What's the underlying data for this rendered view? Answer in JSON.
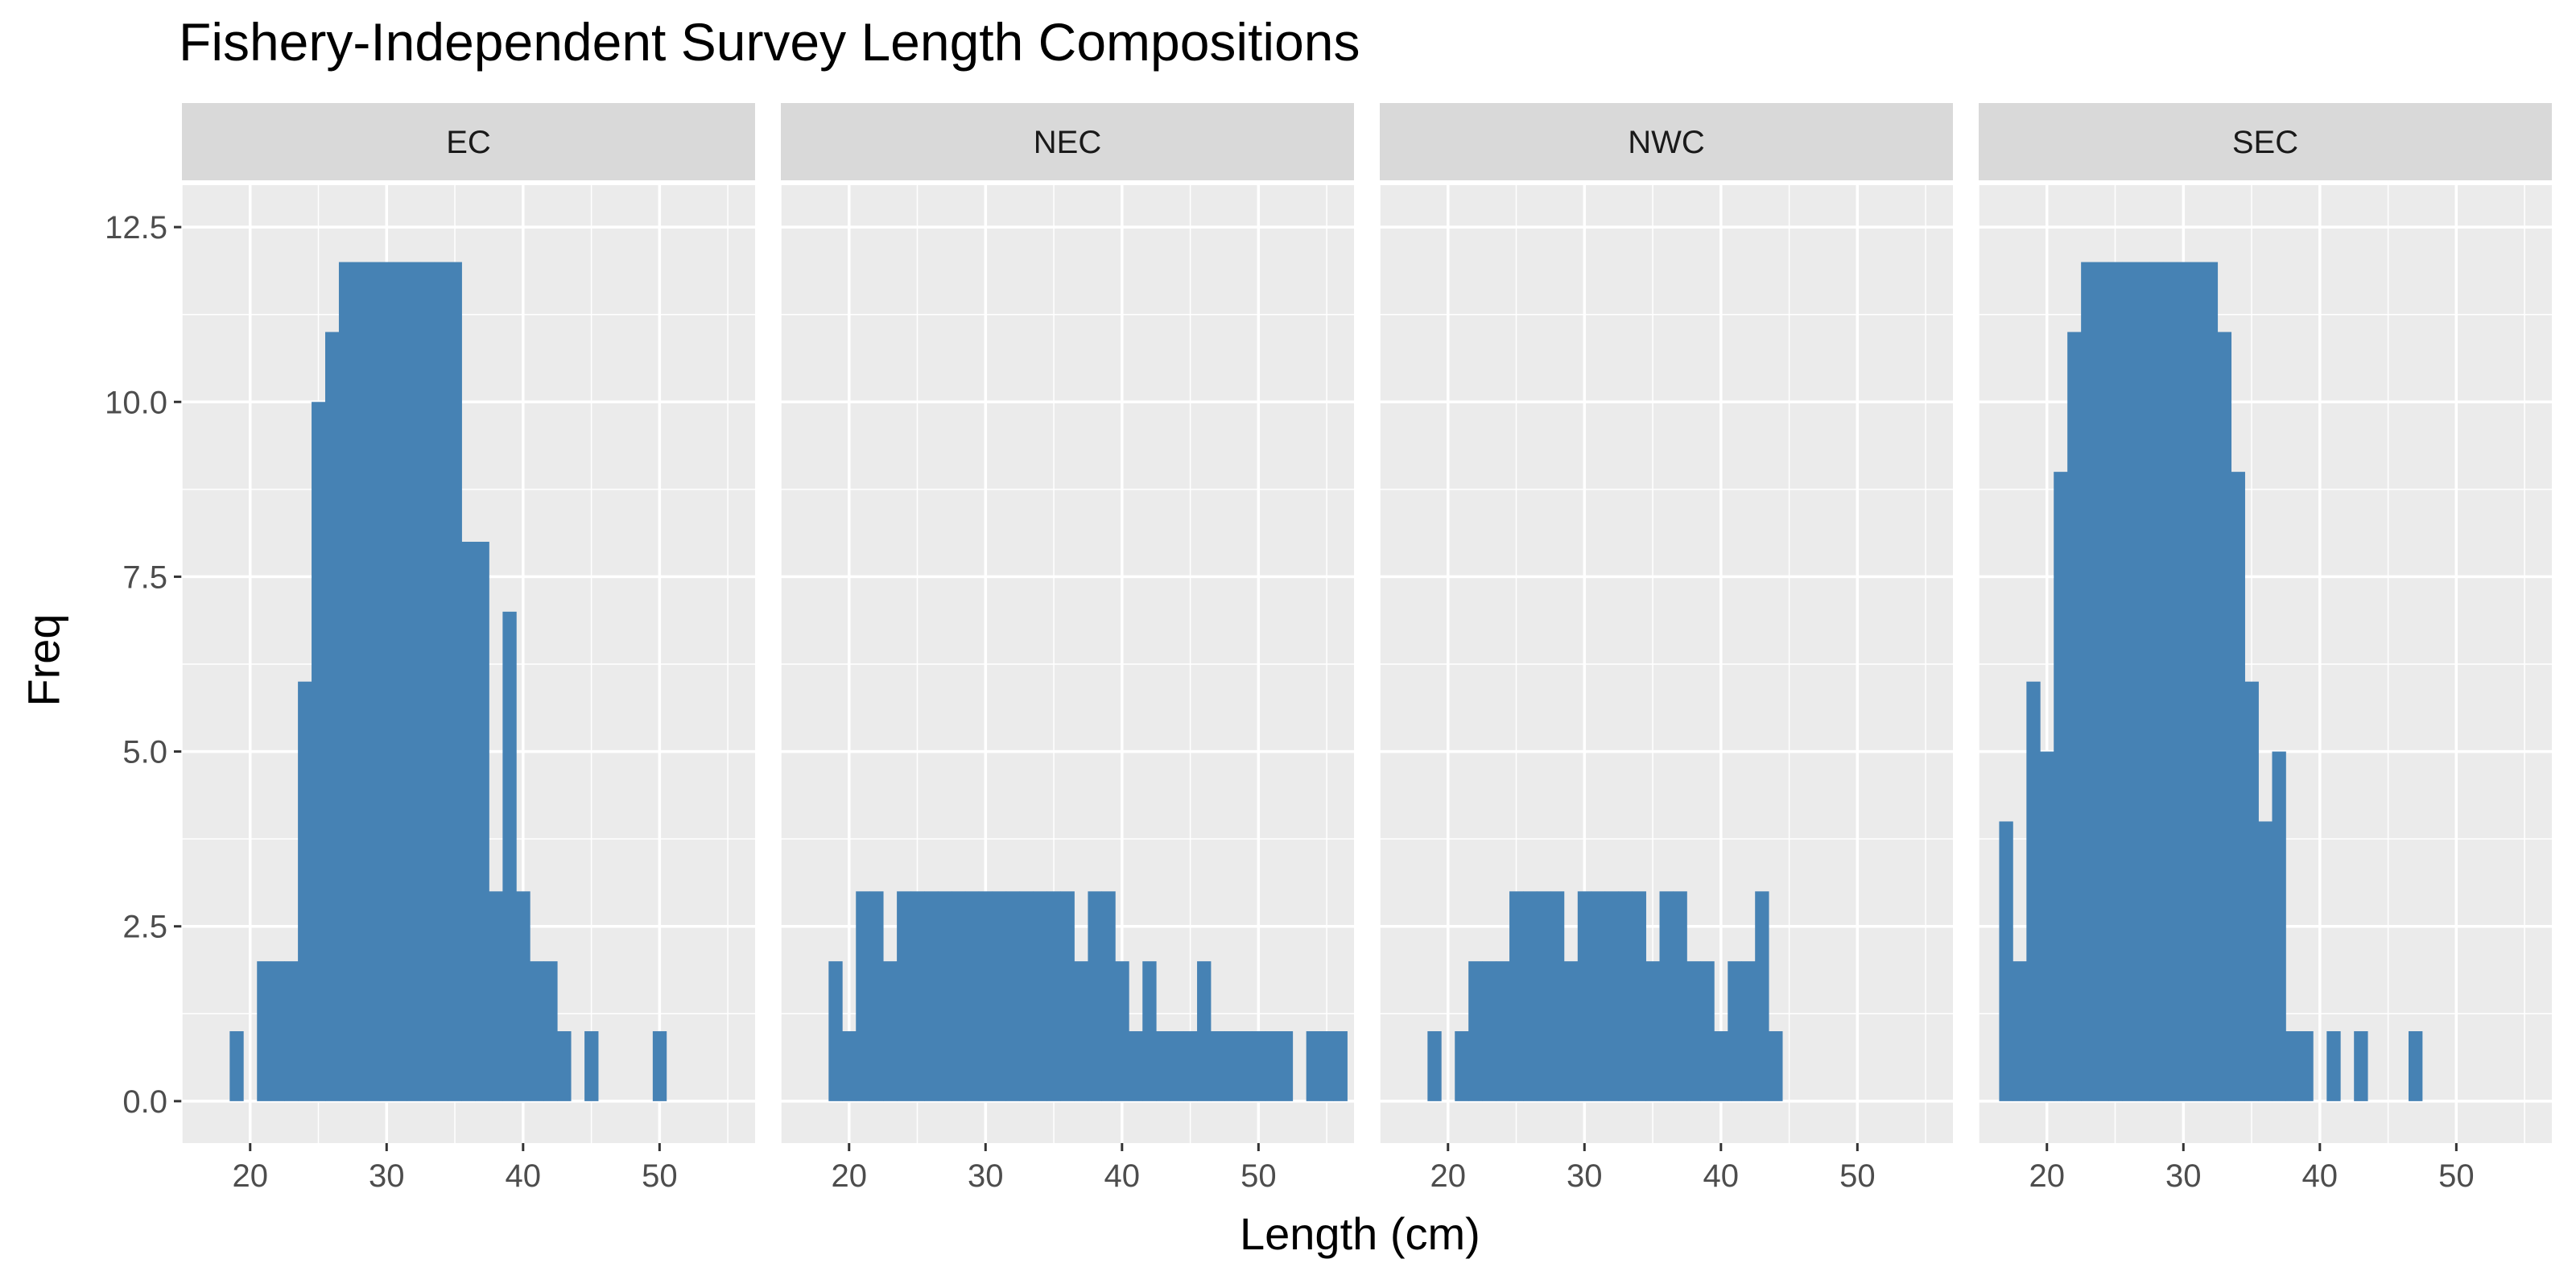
{
  "chart_data": {
    "type": "bar",
    "title": "Fishery-Independent Survey Length Compositions",
    "xlabel": "Length (cm)",
    "ylabel": "Freq",
    "xlim": [
      15,
      57
    ],
    "ylim": [
      -0.6,
      13.1
    ],
    "x_ticks": [
      20,
      30,
      40,
      50
    ],
    "x_tick_labels": [
      "20",
      "30",
      "40",
      "50"
    ],
    "y_ticks": [
      0,
      2.5,
      5,
      7.5,
      10,
      12.5
    ],
    "y_tick_labels": [
      "0.0",
      "2.5",
      "5.0",
      "7.5",
      "10.0",
      "12.5"
    ],
    "bar_color": "#4682B4",
    "panel_background": "#EBEBEB",
    "strip_background": "#D9D9D9",
    "grid": true,
    "legend": "none",
    "panels": [
      {
        "name": "EC",
        "x": [
          19,
          21,
          22,
          23,
          24,
          25,
          26,
          27,
          28,
          29,
          30,
          31,
          32,
          33,
          34,
          35,
          36,
          37,
          38,
          39,
          40,
          41,
          42,
          43,
          45,
          50
        ],
        "y": [
          1,
          2,
          2,
          2,
          6,
          10,
          11,
          12,
          12,
          12,
          12,
          12,
          12,
          12,
          12,
          12,
          8,
          8,
          3,
          7,
          3,
          2,
          2,
          1,
          1,
          1
        ]
      },
      {
        "name": "NEC",
        "x": [
          19,
          20,
          21,
          22,
          23,
          24,
          25,
          26,
          27,
          28,
          29,
          30,
          31,
          32,
          33,
          34,
          35,
          36,
          37,
          38,
          39,
          40,
          41,
          42,
          43,
          44,
          45,
          46,
          47,
          48,
          49,
          50,
          51,
          52,
          54,
          55,
          56
        ],
        "y": [
          2,
          1,
          3,
          3,
          2,
          3,
          3,
          3,
          3,
          3,
          3,
          3,
          3,
          3,
          3,
          3,
          3,
          3,
          2,
          3,
          3,
          2,
          1,
          2,
          1,
          1,
          1,
          2,
          1,
          1,
          1,
          1,
          1,
          1,
          1,
          1,
          1
        ]
      },
      {
        "name": "NWC",
        "x": [
          19,
          21,
          22,
          23,
          24,
          25,
          26,
          27,
          28,
          29,
          30,
          31,
          32,
          33,
          34,
          35,
          36,
          37,
          38,
          39,
          40,
          41,
          42,
          43,
          44
        ],
        "y": [
          1,
          1,
          2,
          2,
          2,
          3,
          3,
          3,
          3,
          2,
          3,
          3,
          3,
          3,
          3,
          2,
          3,
          3,
          2,
          2,
          1,
          2,
          2,
          3,
          1
        ]
      },
      {
        "name": "SEC",
        "x": [
          17,
          18,
          19,
          20,
          21,
          22,
          23,
          24,
          25,
          26,
          27,
          28,
          29,
          30,
          31,
          32,
          33,
          34,
          35,
          36,
          37,
          38,
          39,
          41,
          43,
          47
        ],
        "y": [
          4,
          2,
          6,
          5,
          9,
          11,
          12,
          12,
          12,
          12,
          12,
          12,
          12,
          12,
          12,
          12,
          11,
          9,
          6,
          4,
          5,
          1,
          1,
          1,
          1,
          1
        ]
      }
    ]
  }
}
